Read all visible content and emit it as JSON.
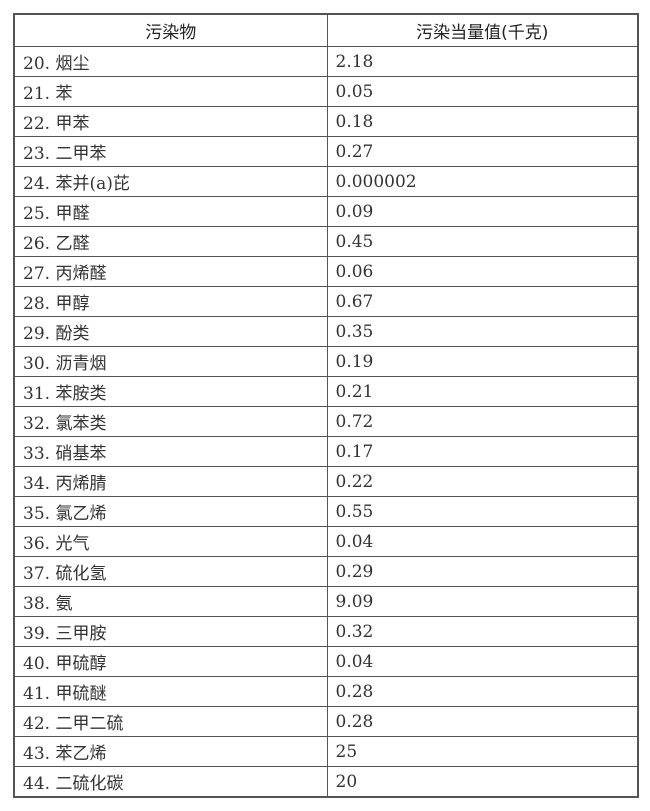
{
  "table": {
    "headers": [
      "污染物",
      "污染当量值(千克)"
    ],
    "rows": [
      [
        "20. 烟尘",
        "2.18"
      ],
      [
        "21. 苯",
        "0.05"
      ],
      [
        "22. 甲苯",
        "0.18"
      ],
      [
        "23. 二甲苯",
        "0.27"
      ],
      [
        "24. 苯并(a)芘",
        "0.000002"
      ],
      [
        "25. 甲醛",
        "0.09"
      ],
      [
        "26. 乙醛",
        "0.45"
      ],
      [
        "27. 丙烯醛",
        "0.06"
      ],
      [
        "28. 甲醇",
        "0.67"
      ],
      [
        "29. 酚类",
        "0.35"
      ],
      [
        "30. 沥青烟",
        "0.19"
      ],
      [
        "31. 苯胺类",
        "0.21"
      ],
      [
        "32. 氯苯类",
        "0.72"
      ],
      [
        "33. 硝基苯",
        "0.17"
      ],
      [
        "34. 丙烯腈",
        "0.22"
      ],
      [
        "35. 氯乙烯",
        "0.55"
      ],
      [
        "36. 光气",
        "0.04"
      ],
      [
        "37. 硫化氢",
        "0.29"
      ],
      [
        "38. 氨",
        "9.09"
      ],
      [
        "39. 三甲胺",
        "0.32"
      ],
      [
        "40. 甲硫醇",
        "0.04"
      ],
      [
        "41. 甲硫醚",
        "0.28"
      ],
      [
        "42. 二甲二硫",
        "0.28"
      ],
      [
        "43. 苯乙烯",
        "25"
      ],
      [
        "44. 二硫化碳",
        "20"
      ]
    ]
  }
}
